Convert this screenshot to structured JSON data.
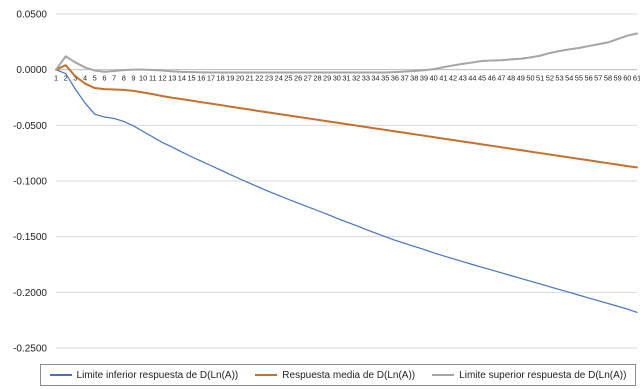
{
  "chart_data": {
    "type": "line",
    "title": "",
    "xlabel": "",
    "ylabel": "",
    "x": [
      1,
      2,
      3,
      4,
      5,
      6,
      7,
      8,
      9,
      10,
      11,
      12,
      13,
      14,
      15,
      16,
      17,
      18,
      19,
      20,
      21,
      22,
      23,
      24,
      25,
      26,
      27,
      28,
      29,
      30,
      31,
      32,
      33,
      34,
      35,
      36,
      37,
      38,
      39,
      40,
      41,
      42,
      43,
      44,
      45,
      46,
      47,
      48,
      49,
      50,
      51,
      52,
      53,
      54,
      55,
      56,
      57,
      58,
      59,
      60,
      61
    ],
    "ylim": [
      -0.25,
      0.05
    ],
    "yticks": [
      0.05,
      0.0,
      -0.05,
      -0.1,
      -0.15,
      -0.2,
      -0.25
    ],
    "ytick_labels": [
      "0.0500",
      "0.0000",
      "-0.0500",
      "-0.1000",
      "-0.1500",
      "-0.2000",
      "-0.2500"
    ],
    "grid": true,
    "legend_position": "bottom",
    "series": [
      {
        "name": "Limite inferior respuesta de D(Ln(A))",
        "color": "#4472c4",
        "values": [
          0.0,
          -0.0035,
          -0.0175,
          -0.03,
          -0.04,
          -0.0425,
          -0.0438,
          -0.0465,
          -0.0505,
          -0.0555,
          -0.0605,
          -0.0655,
          -0.0695,
          -0.074,
          -0.0782,
          -0.0822,
          -0.0862,
          -0.0902,
          -0.0942,
          -0.0982,
          -0.102,
          -0.1058,
          -0.1095,
          -0.113,
          -0.1165,
          -0.1198,
          -0.1232,
          -0.1265,
          -0.1298,
          -0.1335,
          -0.1368,
          -0.14,
          -0.1435,
          -0.1468,
          -0.15,
          -0.1532,
          -0.156,
          -0.1588,
          -0.1615,
          -0.1645,
          -0.1672,
          -0.1698,
          -0.1724,
          -0.175,
          -0.1775,
          -0.18,
          -0.1825,
          -0.185,
          -0.1875,
          -0.19,
          -0.1925,
          -0.195,
          -0.1975,
          -0.2,
          -0.2025,
          -0.205,
          -0.2075,
          -0.21,
          -0.2125,
          -0.215,
          -0.218
        ]
      },
      {
        "name": "Respuesta media de D(Ln(A))",
        "color": "#c5702c",
        "values": [
          0.0,
          0.004,
          -0.006,
          -0.0125,
          -0.0165,
          -0.0175,
          -0.0178,
          -0.0182,
          -0.019,
          -0.0205,
          -0.022,
          -0.0238,
          -0.0252,
          -0.0265,
          -0.0278,
          -0.0292,
          -0.0305,
          -0.0318,
          -0.0332,
          -0.0345,
          -0.0358,
          -0.0372,
          -0.0385,
          -0.0398,
          -0.0411,
          -0.0424,
          -0.0437,
          -0.045,
          -0.0463,
          -0.0476,
          -0.0489,
          -0.0502,
          -0.0515,
          -0.0528,
          -0.0541,
          -0.0554,
          -0.0567,
          -0.058,
          -0.0593,
          -0.0606,
          -0.0619,
          -0.0632,
          -0.0645,
          -0.0658,
          -0.0671,
          -0.0684,
          -0.0697,
          -0.071,
          -0.0723,
          -0.0736,
          -0.0749,
          -0.0762,
          -0.0775,
          -0.0788,
          -0.0801,
          -0.0814,
          -0.0827,
          -0.084,
          -0.0853,
          -0.0866,
          -0.0878
        ]
      },
      {
        "name": "Limite superior respuesta de D(Ln(A))",
        "color": "#a5a5a5",
        "values": [
          0.0,
          0.012,
          0.0065,
          0.002,
          -0.0008,
          -0.002,
          -0.0012,
          -0.0004,
          0.0,
          0.0,
          -0.0003,
          -0.0008,
          -0.0015,
          -0.002,
          -0.0022,
          -0.0024,
          -0.0025,
          -0.0026,
          -0.0026,
          -0.0026,
          -0.0026,
          -0.0026,
          -0.0026,
          -0.0026,
          -0.0026,
          -0.0026,
          -0.0026,
          -0.0026,
          -0.0026,
          -0.0026,
          -0.0026,
          -0.0026,
          -0.0026,
          -0.0026,
          -0.0025,
          -0.0022,
          -0.0018,
          -0.0012,
          -0.0005,
          0.0005,
          0.0022,
          0.0038,
          0.0052,
          0.0065,
          0.0078,
          0.0082,
          0.0085,
          0.0092,
          0.0098,
          0.011,
          0.0125,
          0.015,
          0.0168,
          0.0182,
          0.0195,
          0.0212,
          0.0228,
          0.0245,
          0.0275,
          0.0305,
          0.0325
        ]
      }
    ]
  }
}
